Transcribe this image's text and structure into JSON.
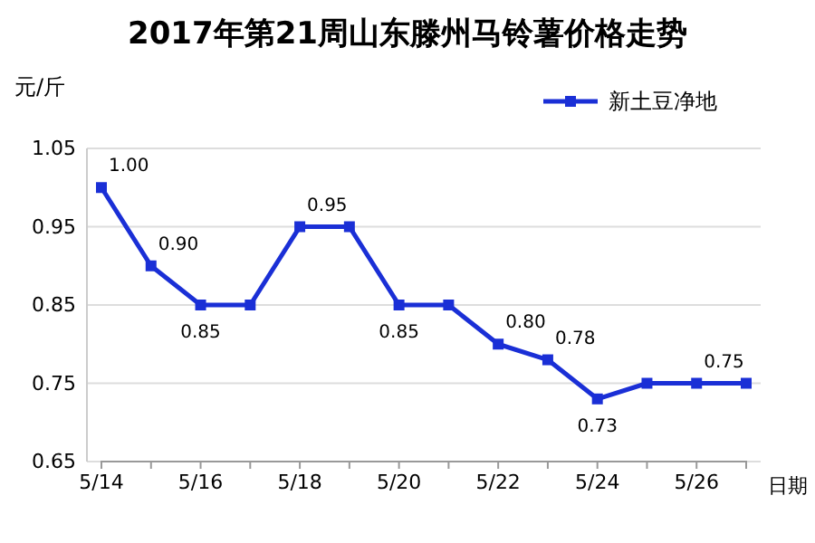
{
  "chart_data": {
    "type": "line",
    "title": "2017年第21周山东滕州马铃薯价格走势",
    "ylabel": "元/斤",
    "xlabel": "日期",
    "categories": [
      "5/14",
      null,
      "5/16",
      null,
      "5/18",
      null,
      "5/20",
      null,
      "5/22",
      null,
      "5/24",
      null,
      "5/26",
      null
    ],
    "series": [
      {
        "name": "新土豆净地",
        "color": "#1a2fd6",
        "values": [
          1.0,
          0.9,
          0.85,
          0.85,
          0.95,
          0.95,
          0.85,
          0.85,
          0.8,
          0.78,
          0.73,
          0.75,
          0.75,
          0.75
        ],
        "value_labels": [
          "1.00",
          "0.90",
          "0.85",
          null,
          "0.95",
          null,
          "0.85",
          null,
          "0.80",
          "0.78",
          "0.73",
          null,
          "0.75",
          null
        ]
      }
    ],
    "ylim": [
      0.65,
      1.05
    ],
    "yticks": [
      "0.65",
      "0.75",
      "0.85",
      "0.95",
      "1.05"
    ],
    "grid": "y",
    "legend": "top right",
    "marker": "square",
    "line_style": "solid"
  }
}
